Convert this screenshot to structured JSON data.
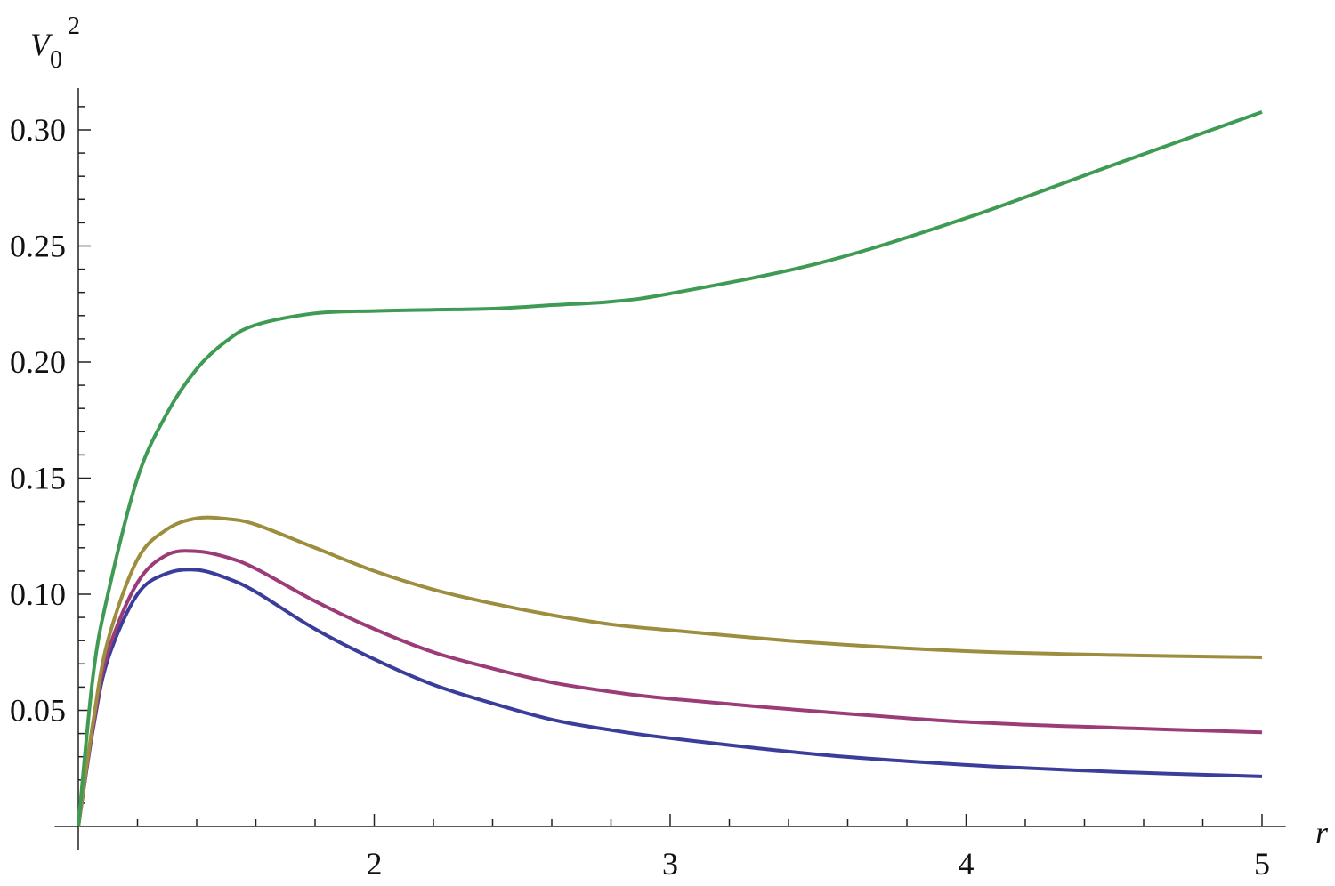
{
  "chart_data": {
    "type": "line",
    "y_label": "V",
    "y_label_sub": "0",
    "y_label_sup": "2",
    "x_label": "r",
    "xlim": [
      0.92,
      5.08
    ],
    "ylim": [
      0,
      0.318
    ],
    "axes_origin": [
      1,
      0
    ],
    "xticks": [
      2,
      3,
      4,
      5
    ],
    "xminorticks": [
      1.2,
      1.4,
      1.6,
      1.8,
      2.2,
      2.4,
      2.6,
      2.8,
      3.2,
      3.4,
      3.6,
      3.8,
      4.2,
      4.4,
      4.6,
      4.8
    ],
    "yticks": [
      0.05,
      {
        "value": 0.1,
        "label": "0.10"
      },
      0.15,
      {
        "value": 0.2,
        "label": "0.20"
      },
      0.25,
      {
        "value": 0.3,
        "label": "0.30"
      }
    ],
    "yminorticks": [
      0.01,
      0.02,
      0.03,
      0.04,
      0.06,
      0.07,
      0.08,
      0.09,
      0.11,
      0.12,
      0.13,
      0.14,
      0.16,
      0.17,
      0.18,
      0.19,
      0.21,
      0.22,
      0.23,
      0.24,
      0.26,
      0.27,
      0.28,
      0.29,
      0.31
    ],
    "x": [
      1,
      1.05,
      1.1,
      1.2,
      1.3,
      1.4,
      1.5,
      1.6,
      1.8,
      2,
      2.2,
      2.4,
      2.6,
      2.8,
      3,
      3.5,
      4,
      4.5,
      5
    ],
    "series": [
      {
        "color": "#3b3d9a",
        "values": [
          0,
          0.042,
          0.072,
          0.1,
          0.109,
          0.1105,
          0.107,
          0.101,
          0.085,
          0.072,
          0.061,
          0.053,
          0.046,
          0.0415,
          0.038,
          0.031,
          0.0265,
          0.0235,
          0.0215
        ]
      },
      {
        "color": "#9b3c78",
        "values": [
          0,
          0.043,
          0.075,
          0.105,
          0.117,
          0.1185,
          0.116,
          0.111,
          0.097,
          0.085,
          0.075,
          0.068,
          0.062,
          0.058,
          0.055,
          0.0495,
          0.045,
          0.0425,
          0.0405
        ]
      },
      {
        "color": "#9c8e3e",
        "values": [
          0,
          0.045,
          0.08,
          0.115,
          0.128,
          0.1327,
          0.1325,
          0.13,
          0.12,
          0.11,
          0.102,
          0.096,
          0.091,
          0.087,
          0.0845,
          0.079,
          0.0755,
          0.0738,
          0.0728
        ]
      },
      {
        "color": "#3f9b54",
        "values": [
          0,
          0.065,
          0.1,
          0.15,
          0.178,
          0.197,
          0.209,
          0.216,
          0.221,
          0.222,
          0.2225,
          0.223,
          0.2245,
          0.226,
          0.2295,
          0.2425,
          0.262,
          0.285,
          0.3077
        ]
      }
    ]
  }
}
